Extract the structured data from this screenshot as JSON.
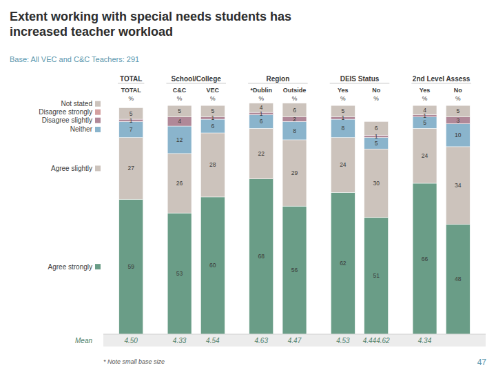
{
  "chart_data": {
    "type": "bar",
    "stacked": true,
    "data_labels": true,
    "tick_labels": false,
    "title": "Extent working with special needs students has\nincreased teacher workload",
    "subtitle": "Base: All VEC and C&C Teachers: 291",
    "categories": [
      "TOTAL",
      "C&C",
      "VEC",
      "*Dublin",
      "Outside",
      "Yes",
      "No",
      "Yes",
      "No"
    ],
    "groups": [
      "TOTAL",
      "School/College",
      "School/College",
      "Region",
      "Region",
      "DEIS Status",
      "DEIS Status",
      "2nd Level Assess",
      "2nd Level Assess"
    ],
    "unit_label": "%",
    "series": [
      {
        "name": "Agree strongly",
        "color": "#6a9d87",
        "values": [
          59,
          53,
          60,
          68,
          56,
          62,
          51,
          66,
          48
        ]
      },
      {
        "name": "Agree slightly",
        "color": "#ccc3bc",
        "values": [
          27,
          26,
          28,
          22,
          29,
          24,
          30,
          24,
          34
        ]
      },
      {
        "name": "Neither",
        "color": "#8ab4cc",
        "values": [
          7,
          12,
          6,
          6,
          8,
          8,
          5,
          5,
          10
        ]
      },
      {
        "name": "Disagree slightly",
        "color": "#b08898",
        "values": [
          1,
          4,
          1,
          1,
          2,
          1,
          1,
          1,
          3
        ]
      },
      {
        "name": "Disagree strongly",
        "color": "#d4a0a0",
        "values": [
          0,
          0,
          0,
          0,
          0,
          0,
          0,
          0,
          0
        ]
      },
      {
        "name": "Not stated",
        "color": "#ccc3bc",
        "values": [
          5,
          5,
          5,
          4,
          6,
          5,
          6,
          4,
          5
        ]
      }
    ],
    "ylim": [
      -3,
      113
    ],
    "mean_label": "Mean",
    "means": [
      "4.50",
      "4.33",
      "4.54",
      "4.63",
      "4.47",
      "4.53",
      "4.444.62",
      "4.34",
      null
    ],
    "note": "* Note small base size",
    "page_number": "47"
  }
}
